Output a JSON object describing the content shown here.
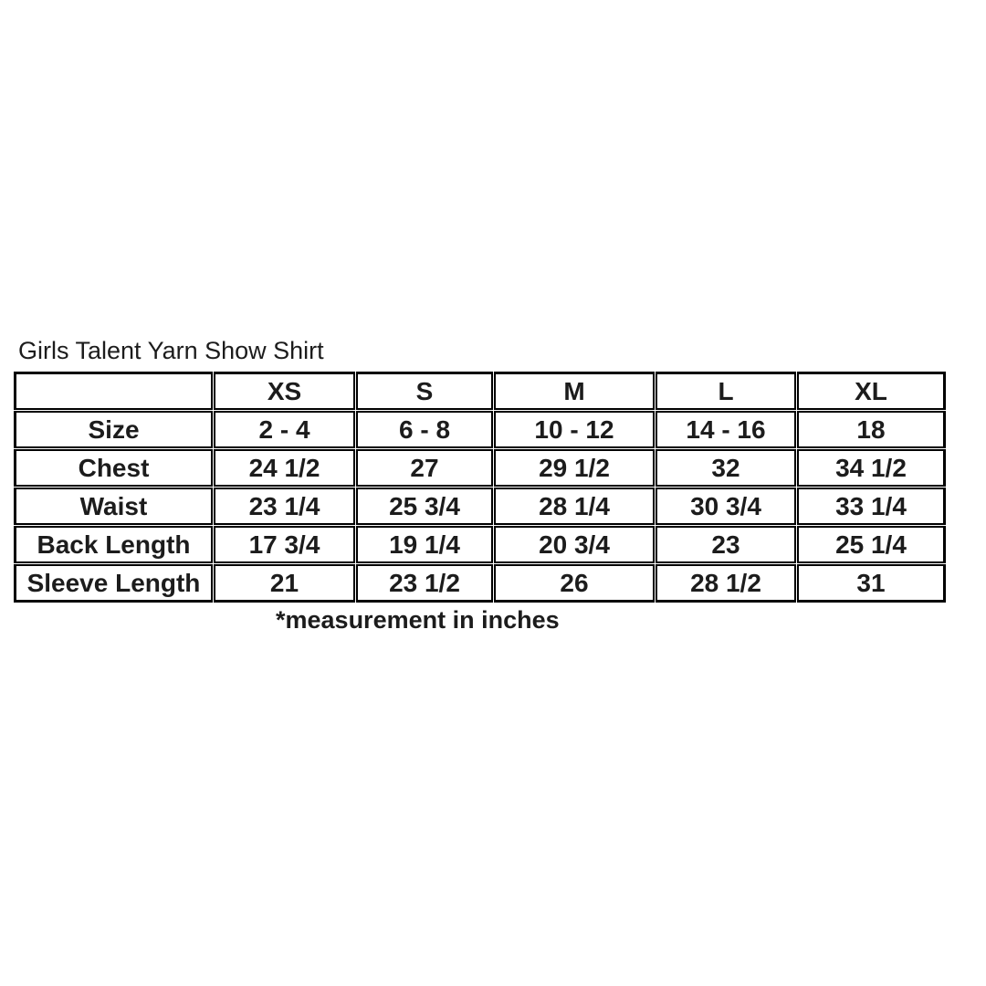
{
  "colors": {
    "background": "#ffffff",
    "border": "#000000",
    "text": "#1c1c1c"
  },
  "chart_data": {
    "type": "table",
    "title": "Girls Talent Yarn Show Shirt",
    "note": "*measurement in inches",
    "columns": [
      "",
      "XS",
      "S",
      "M",
      "L",
      "XL"
    ],
    "rows": [
      {
        "label": "Size",
        "values": [
          "2 - 4",
          "6 - 8",
          "10 - 12",
          "14 - 16",
          "18"
        ]
      },
      {
        "label": "Chest",
        "values": [
          "24 1/2",
          "27",
          "29 1/2",
          "32",
          "34 1/2"
        ]
      },
      {
        "label": "Waist",
        "values": [
          "23 1/4",
          "25 3/4",
          "28 1/4",
          "30 3/4",
          "33 1/4"
        ]
      },
      {
        "label": "Back Length",
        "values": [
          "17 3/4",
          "19 1/4",
          "20 3/4",
          "23",
          "25 1/4"
        ]
      },
      {
        "label": "Sleeve Length",
        "values": [
          "21",
          "23 1/2",
          "26",
          "28 1/2",
          "31"
        ]
      }
    ]
  }
}
